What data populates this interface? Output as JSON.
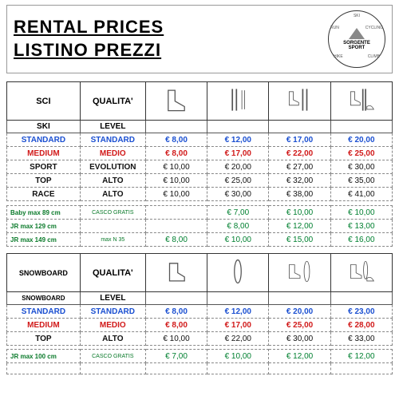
{
  "header": {
    "line1": "RENTAL  PRICES",
    "line2": "LISTINO  PREZZI",
    "logo_words": [
      "SKI",
      "CYCLING",
      "CLIMB",
      "HIKE",
      "RUN"
    ],
    "logo_name": "SORGENTE",
    "logo_sub": "SPORT"
  },
  "colors": {
    "standard": "#1a4fd1",
    "medium": "#d11a1a",
    "sport": "#111111",
    "top": "#111111",
    "race": "#111111",
    "jr": "#0a7a2a",
    "price_default": "#008030",
    "price_blue": "#1a4fd1",
    "price_red": "#d11a1a",
    "price_black": "#111111"
  },
  "ski": {
    "head1": "SCI",
    "head2": "QUALITA'",
    "sub1": "SKI",
    "sub2": "LEVEL",
    "icons": [
      "boot",
      "skis-poles",
      "boot-skis",
      "boot-skis-helmet"
    ],
    "rows": [
      {
        "style": "standard",
        "a": "STANDARD",
        "b": "STANDARD",
        "p": [
          "8,00",
          "12,00",
          "17,00",
          "20,00"
        ]
      },
      {
        "style": "medium",
        "a": "MEDIUM",
        "b": "MEDIO",
        "p": [
          "8,00",
          "17,00",
          "22,00",
          "25,00"
        ]
      },
      {
        "style": "sport",
        "a": "SPORT",
        "b": "EVOLUTION",
        "p": [
          "10,00",
          "20,00",
          "27,00",
          "30,00"
        ]
      },
      {
        "style": "top",
        "a": "TOP",
        "b": "ALTO",
        "p": [
          "10,00",
          "25,00",
          "32,00",
          "35,00"
        ]
      },
      {
        "style": "race",
        "a": "RACE",
        "b": "ALTO",
        "p": [
          "10,00",
          "30,00",
          "38,00",
          "41,00"
        ]
      }
    ],
    "jr_rows": [
      {
        "a": "Baby max 89 cm",
        "b": "CASCO GRATIS",
        "p": [
          "",
          "7,00",
          "10,00",
          "10,00"
        ]
      },
      {
        "a": "JR  max 129 cm",
        "b": "",
        "p": [
          "",
          "8,00",
          "12,00",
          "13,00"
        ]
      },
      {
        "a": "JR  max 149 cm",
        "b": "max N 35",
        "p": [
          "8,00",
          "10,00",
          "15,00",
          "16,00"
        ]
      }
    ]
  },
  "snow": {
    "head1": "SNOWBOARD",
    "head2": "QUALITA'",
    "sub1": "SNOWBOARD",
    "sub2": "LEVEL",
    "icons": [
      "snow-boot",
      "snowboard",
      "snow-boot-board",
      "snow-boot-board-helmet"
    ],
    "rows": [
      {
        "style": "standard",
        "a": "STANDARD",
        "b": "STANDARD",
        "p": [
          "8,00",
          "12,00",
          "20,00",
          "23,00"
        ]
      },
      {
        "style": "medium",
        "a": "MEDIUM",
        "b": "MEDIO",
        "p": [
          "8,00",
          "17,00",
          "25,00",
          "28,00"
        ]
      },
      {
        "style": "top",
        "a": "TOP",
        "b": "ALTO",
        "p": [
          "10,00",
          "22,00",
          "30,00",
          "33,00"
        ]
      }
    ],
    "jr_rows": [
      {
        "a": "JR  max 100 cm",
        "b": "CASCO GRATIS",
        "p": [
          "7,00",
          "10,00",
          "12,00",
          "12,00"
        ]
      }
    ]
  }
}
